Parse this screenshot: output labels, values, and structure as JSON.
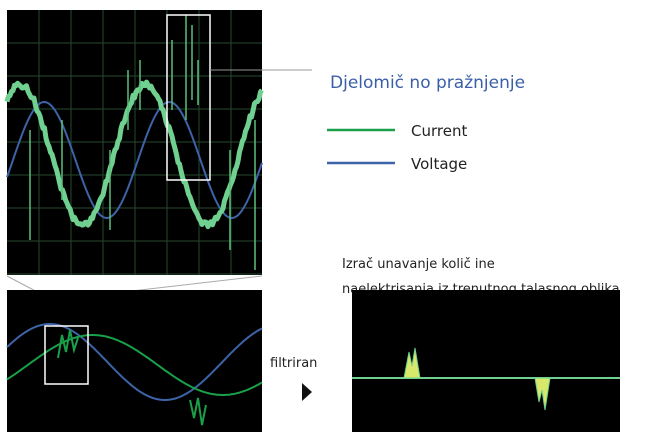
{
  "callout": {
    "label": "Djelomič no pražnjenje"
  },
  "legend": [
    {
      "label": "Current"
    },
    {
      "label": "Voltage"
    }
  ],
  "filter": {
    "label": "filtriran"
  },
  "description": {
    "lines": [
      "Izrač unavanje količ ine",
      "naelektrisanja iz trenutnog talasnog oblika"
    ]
  }
}
